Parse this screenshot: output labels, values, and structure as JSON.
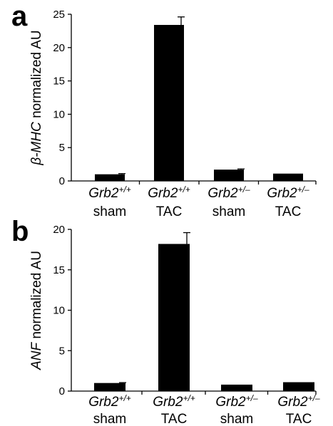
{
  "panels": [
    {
      "letter": "a",
      "ylabel_italic": "β-MHC",
      "ylabel_plain": " normalized AU"
    },
    {
      "letter": "b",
      "ylabel_italic": "ANF",
      "ylabel_plain": " normalized AU"
    }
  ],
  "chart_data": [
    {
      "type": "bar",
      "title": "",
      "xlabel": "",
      "ylabel": "β-MHC normalized AU",
      "categories": [
        {
          "genotype": "Grb2",
          "sup": "+/+",
          "condition": "sham"
        },
        {
          "genotype": "Grb2",
          "sup": "+/+",
          "condition": "TAC"
        },
        {
          "genotype": "Grb2",
          "sup": "+/–",
          "condition": "sham"
        },
        {
          "genotype": "Grb2",
          "sup": "+/–",
          "condition": "TAC"
        }
      ],
      "values": [
        1.0,
        23.4,
        1.7,
        1.1
      ],
      "errors": [
        0.1,
        1.2,
        0.1,
        0.0
      ],
      "ylim": [
        0,
        25
      ],
      "yticks": [
        0,
        5,
        10,
        15,
        20,
        25
      ],
      "grid": false,
      "bar_color": "#000000"
    },
    {
      "type": "bar",
      "title": "",
      "xlabel": "",
      "ylabel": "ANF normalized AU",
      "categories": [
        {
          "genotype": "Grb2",
          "sup": "+/+",
          "condition": "sham"
        },
        {
          "genotype": "Grb2",
          "sup": "+/+",
          "condition": "TAC"
        },
        {
          "genotype": "Grb2",
          "sup": "+/–",
          "condition": "sham"
        },
        {
          "genotype": "Grb2",
          "sup": "+/–",
          "condition": "TAC"
        }
      ],
      "values": [
        1.0,
        18.2,
        0.8,
        1.1
      ],
      "errors": [
        0.05,
        1.4,
        0.0,
        0.0
      ],
      "ylim": [
        0,
        20
      ],
      "yticks": [
        0,
        5,
        10,
        15,
        20
      ],
      "grid": false,
      "bar_color": "#000000"
    }
  ]
}
